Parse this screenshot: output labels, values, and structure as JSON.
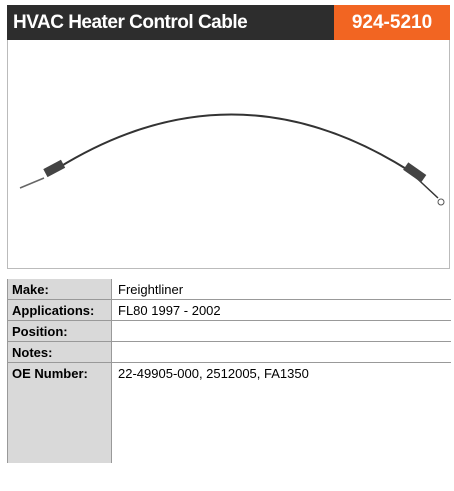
{
  "header": {
    "title": "HVAC Heater Control Cable",
    "part_number": "924-5210"
  },
  "specs": [
    {
      "label": "Make:",
      "value": "Freightliner"
    },
    {
      "label": "Applications:",
      "value": "FL80 1997 - 2002"
    },
    {
      "label": "Position:"
    },
    {
      "label": "Notes:"
    },
    {
      "label": "OE Number:",
      "value": "22-49905-000, 2512005, FA1350"
    }
  ]
}
